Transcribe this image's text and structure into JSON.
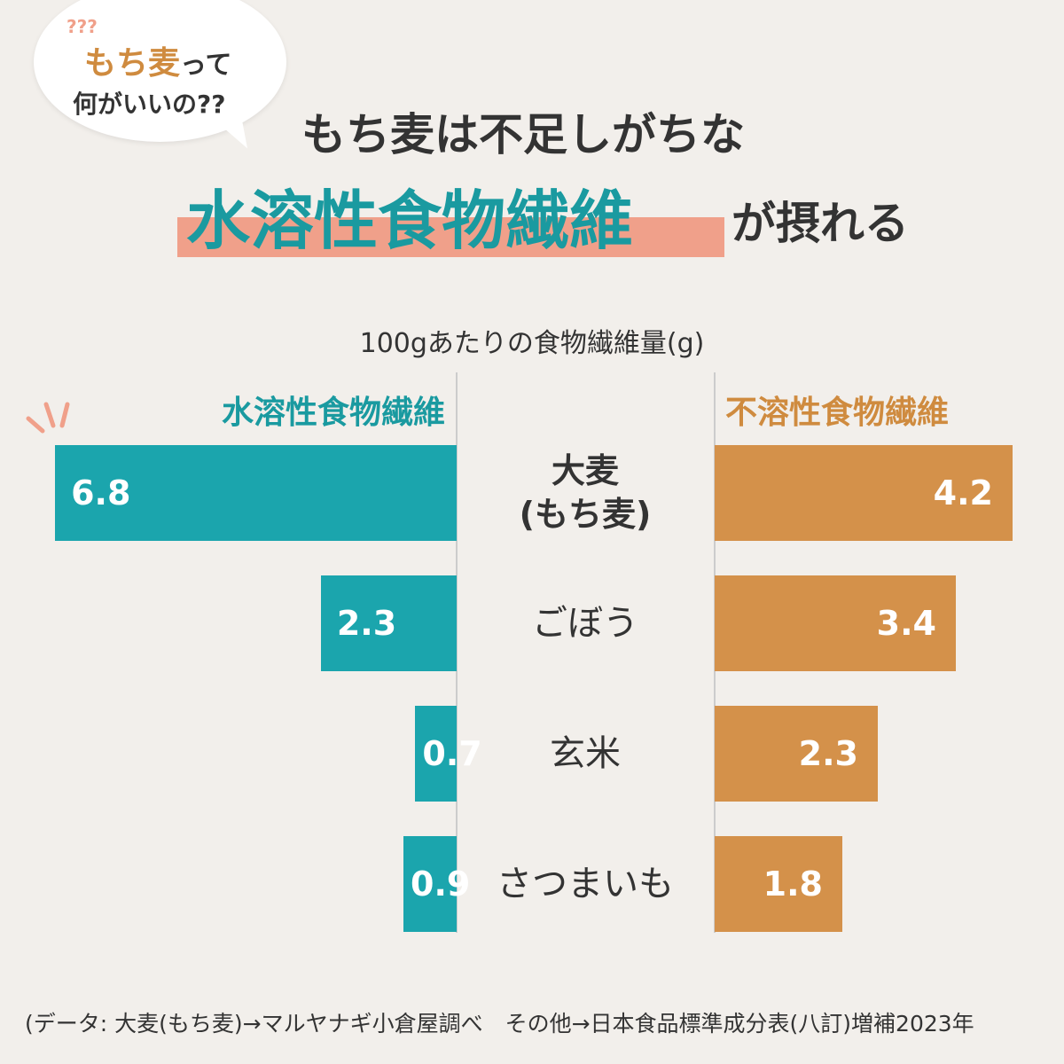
{
  "bubble": {
    "line1_accent": "もち麦",
    "line1_rest": "って",
    "line2": "何がいいの??",
    "marks": "???"
  },
  "title": {
    "line1": "もち麦は不足しがちな",
    "highlight": "水溶性食物繊維",
    "line2_rest": "が摂れる"
  },
  "colors": {
    "soluble": "#1ba5ad",
    "insoluble": "#d4914a",
    "highlight": "#f0a08a",
    "title_accent": "#1a9aa0"
  },
  "chart_data": {
    "type": "bar",
    "orientation": "horizontal-butterfly",
    "title": "100gあたりの食物繊維量(g)",
    "categories": [
      "大麦\n(もち麦)",
      "ごぼう",
      "玄米",
      "さつまいも"
    ],
    "series": [
      {
        "name": "水溶性食物繊維",
        "values": [
          6.8,
          2.3,
          0.7,
          0.9
        ],
        "labels": [
          "6.8",
          "2.3",
          "0.7",
          "0.9"
        ]
      },
      {
        "name": "不溶性食物繊維",
        "values": [
          4.2,
          3.4,
          2.3,
          1.8
        ],
        "labels": [
          "4.2",
          "3.4",
          "2.3",
          "1.8"
        ]
      }
    ]
  },
  "footnote": "(データ: 大麦(もち麦)→マルヤナギ小倉屋調べ　その他→日本食品標準成分表(八訂)増補2023年"
}
